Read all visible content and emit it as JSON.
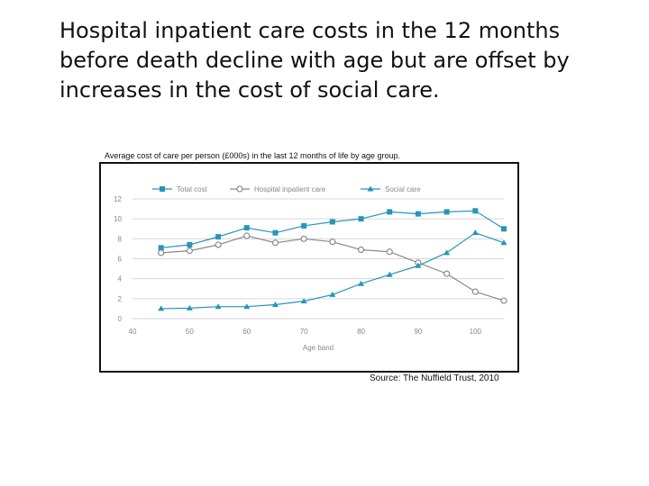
{
  "slide": {
    "title": "Hospital inpatient care costs in the 12 months before death decline with age but are offset by increases in the cost of social care.",
    "caption": "Average cost of care per person (£000s) in the last 12 months of life by age group.",
    "source": "Source: The Nuffield Trust, 2010"
  },
  "colors": {
    "total_cost": "#2596b8",
    "hospital_inpatient_care": "#8a8a8a",
    "social_care": "#2596b8",
    "grid": "#d6d6d6",
    "text": "#888888"
  },
  "chart_data": {
    "type": "line",
    "title": "",
    "xlabel": "Age band",
    "ylabel": "",
    "xlim": [
      40,
      105
    ],
    "ylim": [
      0,
      12
    ],
    "xticks": [
      40,
      50,
      60,
      70,
      80,
      90,
      100
    ],
    "yticks": [
      0,
      2,
      4,
      6,
      8,
      10,
      12
    ],
    "x": [
      45,
      50,
      55,
      60,
      65,
      70,
      75,
      80,
      85,
      90,
      95,
      100,
      105
    ],
    "series": [
      {
        "name": "Total cost",
        "marker": "square",
        "values": [
          7.1,
          7.4,
          8.2,
          9.1,
          8.6,
          9.3,
          9.7,
          10.0,
          10.7,
          10.5,
          10.7,
          10.8,
          9.0
        ]
      },
      {
        "name": "Hospital inpatient care",
        "marker": "circle",
        "values": [
          6.6,
          6.8,
          7.4,
          8.3,
          7.6,
          8.0,
          7.7,
          6.9,
          6.7,
          5.6,
          4.5,
          2.7,
          1.8
        ]
      },
      {
        "name": "Social care",
        "marker": "triangle",
        "values": [
          1.0,
          1.05,
          1.2,
          1.2,
          1.4,
          1.75,
          2.4,
          3.5,
          4.4,
          5.3,
          6.6,
          8.6,
          7.6
        ]
      }
    ]
  }
}
